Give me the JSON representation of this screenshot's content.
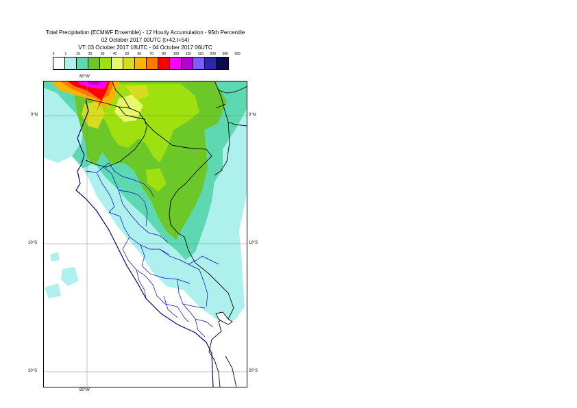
{
  "header": {
    "line1": "Total Precipitation (ECMWF Ensemble) - 12 Hourly Accumulation - 95th Percentile",
    "line2": "02 October 2017 00UTC (t+42,t+54)",
    "line3": "VT: 03 October 2017 18UTC - 04 October 2017 06UTC"
  },
  "legend": {
    "labels": [
      "0",
      "1",
      "10",
      "20",
      "30",
      "40",
      "50",
      "60",
      "70",
      "80",
      "100",
      "125",
      "150",
      "200",
      "300",
      "500"
    ],
    "colors": [
      "#ffffff",
      "#aef0ee",
      "#5ed8b0",
      "#6cc828",
      "#9ee010",
      "#e8f86a",
      "#d8dc20",
      "#ffb400",
      "#ff7800",
      "#ff0000",
      "#ff00ff",
      "#b800d0",
      "#7f5cff",
      "#2828a8",
      "#0a0a50"
    ]
  },
  "axes": {
    "lon_top": "80°W",
    "lon_bottom": "80°W",
    "lat_left": [
      "0°N",
      "10°S",
      "20°S"
    ],
    "lat_right": [
      "0°N",
      "10°S",
      "20°S"
    ]
  }
}
